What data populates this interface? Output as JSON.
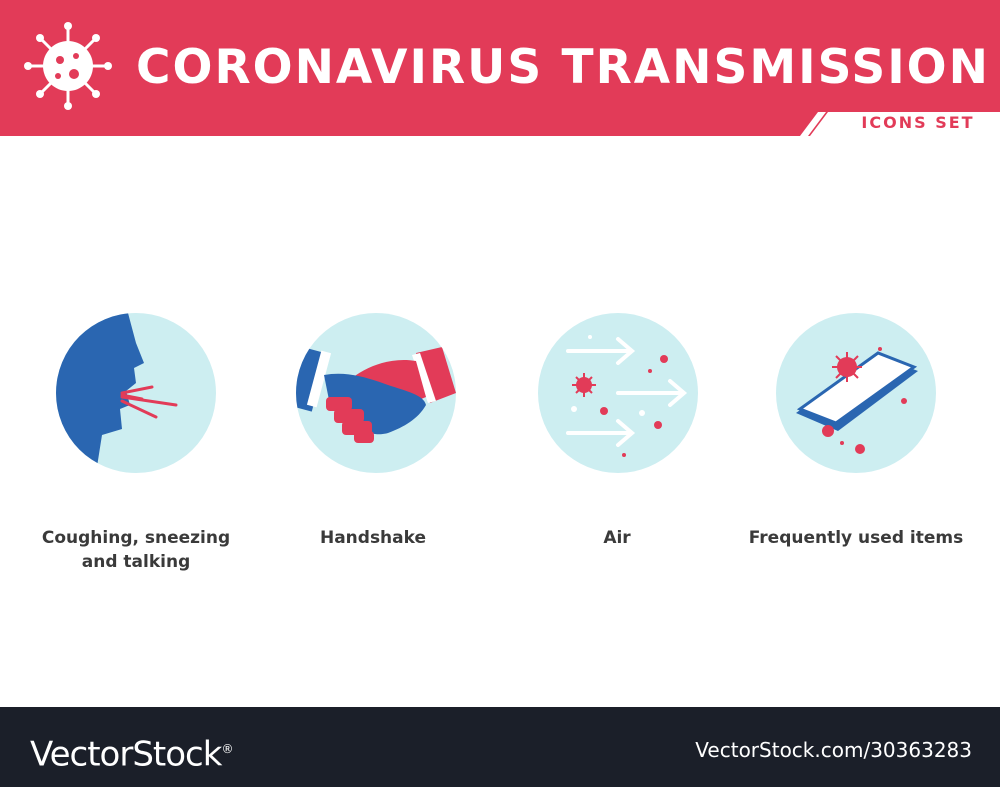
{
  "header": {
    "title": "CORONAVIRUS  TRANSMISSION",
    "subtitle": "ICONS SET",
    "logo_icon": "coronavirus-icon"
  },
  "items": [
    {
      "label_line1": "Coughing, sneezing",
      "label_line2": "and talking",
      "icon": "coughing-face-icon"
    },
    {
      "label_line1": "Handshake",
      "label_line2": "",
      "icon": "handshake-icon"
    },
    {
      "label_line1": "Air",
      "label_line2": "",
      "icon": "airborne-virus-icon"
    },
    {
      "label_line1": "Frequently used items",
      "label_line2": "",
      "icon": "contaminated-phone-icon"
    }
  ],
  "footer": {
    "brand": "VectorStock",
    "registered_mark": "®",
    "url": "VectorStock.com/30363283"
  },
  "colors": {
    "accent_red": "#e23b58",
    "circle_bg": "#cdeef1",
    "icon_blue": "#2a66b1",
    "footer_bg": "#1b1f29"
  }
}
